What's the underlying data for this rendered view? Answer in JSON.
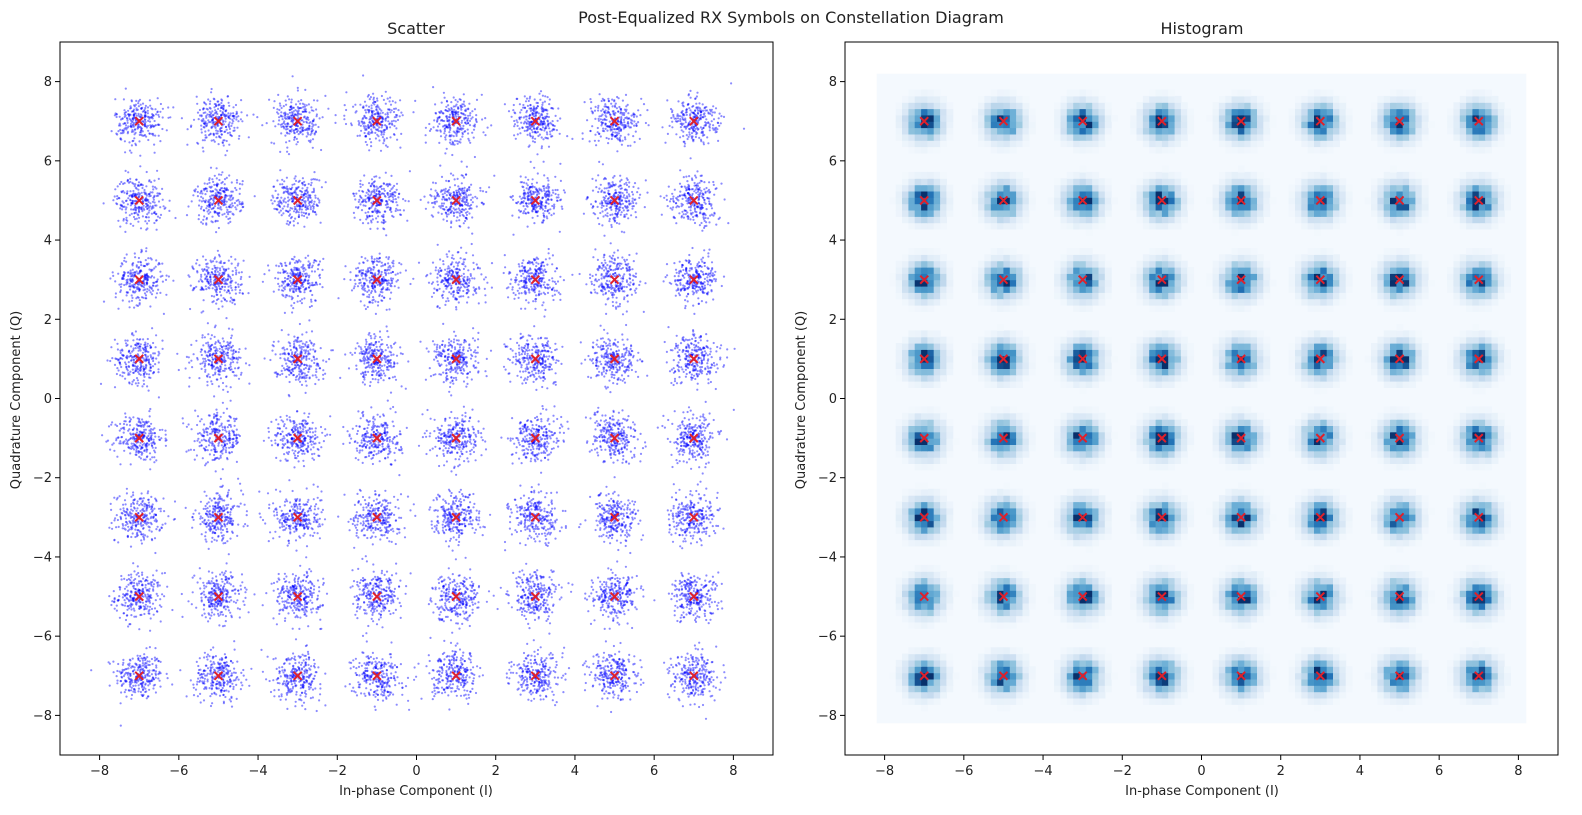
{
  "figure": {
    "title": "Post-Equalized RX Symbols on Constellation Diagram"
  },
  "chart_data": [
    {
      "type": "scatter",
      "title": "Scatter",
      "xlabel": "In-phase Component (I)",
      "ylabel": "Quadrature Component (Q)",
      "xlim": [
        -9,
        9
      ],
      "ylim": [
        -9,
        9
      ],
      "xticks": [
        -8,
        -6,
        -4,
        -2,
        0,
        2,
        4,
        6,
        8
      ],
      "yticks": [
        -8,
        -6,
        -4,
        -2,
        0,
        2,
        4,
        6,
        8
      ],
      "grid": false,
      "constellation": {
        "i_levels": [
          -7,
          -5,
          -3,
          -1,
          1,
          3,
          5,
          7
        ],
        "q_levels": [
          -7,
          -5,
          -3,
          -1,
          1,
          3,
          5,
          7
        ],
        "marker": "x",
        "marker_color": "#e0202a"
      },
      "series": [
        {
          "kind": "received-symbols",
          "color": "#0000ff",
          "opacity": 0.45,
          "noise_std": 0.3,
          "points_per_symbol": 260
        }
      ]
    },
    {
      "type": "heatmap",
      "title": "Histogram",
      "xlabel": "In-phase Component (I)",
      "ylabel": "Quadrature Component (Q)",
      "xlim": [
        -9,
        9
      ],
      "ylim": [
        -9,
        9
      ],
      "xticks": [
        -8,
        -6,
        -4,
        -2,
        0,
        2,
        4,
        6,
        8
      ],
      "yticks": [
        -8,
        -6,
        -4,
        -2,
        0,
        2,
        4,
        6,
        8
      ],
      "grid": false,
      "extent": [
        -8.2,
        8.2,
        -8.2,
        8.2
      ],
      "colormap": "Blues",
      "constellation": {
        "i_levels": [
          -7,
          -5,
          -3,
          -1,
          1,
          3,
          5,
          7
        ],
        "q_levels": [
          -7,
          -5,
          -3,
          -1,
          1,
          3,
          5,
          7
        ],
        "marker": "x",
        "marker_color": "#e0202a"
      }
    }
  ]
}
